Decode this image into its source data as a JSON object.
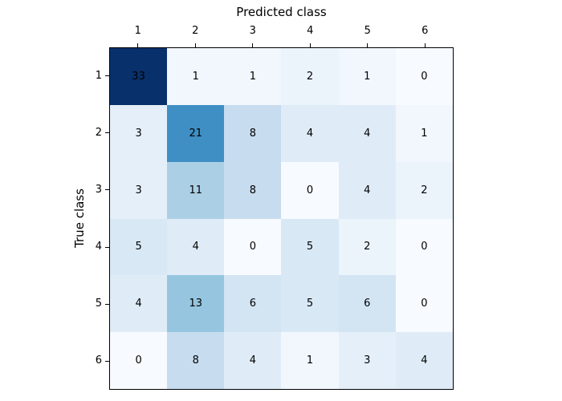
{
  "figure": {
    "background": "#ffffff",
    "frame_color": "#000000"
  },
  "chart_data": {
    "type": "heatmap",
    "title": "",
    "xlabel": "Predicted class",
    "ylabel": "True class",
    "x_tick_labels": [
      "1",
      "2",
      "3",
      "4",
      "5",
      "6"
    ],
    "y_tick_labels": [
      "1",
      "2",
      "3",
      "4",
      "5",
      "6"
    ],
    "matrix": [
      [
        33,
        1,
        1,
        2,
        1,
        0
      ],
      [
        3,
        21,
        8,
        4,
        4,
        1
      ],
      [
        3,
        11,
        8,
        0,
        4,
        2
      ],
      [
        5,
        4,
        0,
        5,
        2,
        0
      ],
      [
        4,
        13,
        6,
        5,
        6,
        0
      ],
      [
        0,
        8,
        4,
        1,
        3,
        4
      ]
    ],
    "grid": false,
    "legend": "none",
    "colormap": {
      "name": "Blues",
      "vmin": 0,
      "vmax": 33,
      "cell_text_color": "#000000",
      "value_colors": {
        "0": "#f7fbff",
        "1": "#f1f7fd",
        "2": "#ebf3fb",
        "3": "#e5eff9",
        "4": "#dfecf7",
        "5": "#d9e8f5",
        "6": "#d3e4f3",
        "8": "#c7dcef",
        "11": "#abd0e6",
        "13": "#96c6df",
        "21": "#3f8fc4",
        "33": "#08306b"
      }
    }
  }
}
